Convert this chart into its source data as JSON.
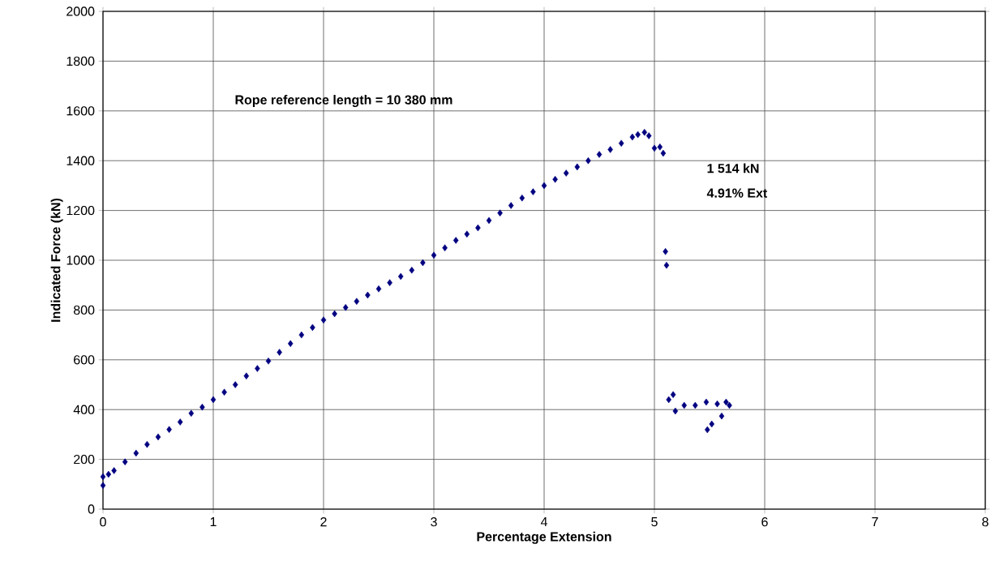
{
  "chart_data": {
    "type": "scatter",
    "xlabel": "Percentage Extension",
    "ylabel": "Indicated Force (kN)",
    "annotations": [
      "Rope reference length = 10 380 mm",
      "1 514 kN",
      "4.91% Ext"
    ],
    "x": [
      0,
      0,
      0.05,
      0.1,
      0.2,
      0.3,
      0.4,
      0.5,
      0.6,
      0.7,
      0.8,
      0.9,
      1.0,
      1.1,
      1.2,
      1.3,
      1.4,
      1.5,
      1.6,
      1.7,
      1.8,
      1.9,
      2.0,
      2.1,
      2.2,
      2.3,
      2.4,
      2.5,
      2.6,
      2.7,
      2.8,
      2.9,
      3.0,
      3.1,
      3.2,
      3.3,
      3.4,
      3.5,
      3.6,
      3.7,
      3.8,
      3.9,
      4.0,
      4.1,
      4.2,
      4.3,
      4.4,
      4.5,
      4.6,
      4.7,
      4.8,
      4.85,
      4.91,
      4.95,
      5.0,
      5.05,
      5.08,
      5.1,
      5.11,
      5.13,
      5.17,
      5.19,
      5.27,
      5.37,
      5.47,
      5.57,
      5.65,
      5.68,
      5.61,
      5.52,
      5.48
    ],
    "values": [
      95,
      130,
      140,
      155,
      190,
      225,
      260,
      290,
      320,
      350,
      385,
      410,
      440,
      470,
      500,
      535,
      565,
      595,
      630,
      665,
      700,
      730,
      760,
      785,
      810,
      835,
      860,
      885,
      910,
      935,
      960,
      990,
      1020,
      1050,
      1080,
      1105,
      1130,
      1160,
      1190,
      1220,
      1250,
      1275,
      1300,
      1325,
      1350,
      1375,
      1400,
      1425,
      1445,
      1470,
      1495,
      1505,
      1514,
      1500,
      1450,
      1455,
      1430,
      1035,
      980,
      440,
      460,
      394,
      417,
      417,
      430,
      423,
      430,
      417,
      374,
      342,
      319
    ],
    "color": "#000080",
    "marker": "diamond",
    "grid": true,
    "xlim": [
      0,
      8
    ],
    "xticks": [
      0,
      1,
      2,
      3,
      4,
      5,
      6,
      7,
      8
    ],
    "ylim": [
      0,
      2000
    ],
    "yticks": [
      0,
      200,
      400,
      600,
      800,
      1000,
      1200,
      1400,
      1600,
      1800,
      2000
    ]
  }
}
